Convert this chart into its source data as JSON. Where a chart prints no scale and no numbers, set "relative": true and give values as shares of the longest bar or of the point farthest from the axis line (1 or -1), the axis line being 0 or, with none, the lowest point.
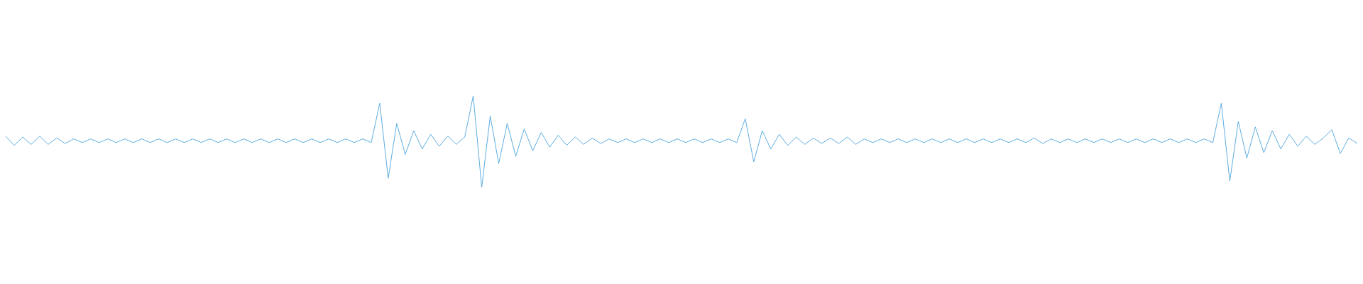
{
  "chart_data": {
    "type": "line",
    "relative": true,
    "marker": "none",
    "categories": [
      null,
      null,
      null,
      null,
      null,
      null,
      null,
      null,
      null,
      null,
      null,
      null,
      null,
      null,
      null,
      null,
      null,
      null,
      null,
      null,
      null,
      null,
      null,
      null,
      null,
      null,
      null,
      null,
      null,
      null,
      null,
      null,
      null,
      null,
      null,
      null,
      null,
      null,
      null,
      null,
      null,
      null,
      null,
      null,
      null,
      null,
      null,
      null,
      null,
      null,
      null,
      null,
      null,
      null,
      null,
      null,
      null,
      null,
      null,
      null,
      null,
      null,
      null,
      null,
      null,
      null,
      null,
      null,
      null,
      null,
      null,
      null,
      null,
      null,
      null,
      null,
      null,
      null,
      null,
      null,
      null,
      null,
      null,
      null,
      null,
      null,
      null,
      null,
      null,
      null,
      null,
      null,
      null,
      null,
      null,
      null,
      null,
      null,
      null,
      null,
      null,
      null,
      null,
      null,
      null,
      null,
      null,
      null,
      null,
      null,
      null,
      null,
      null,
      null,
      null,
      null,
      null,
      null,
      null,
      null,
      null,
      null,
      null,
      null,
      null,
      null,
      null,
      null,
      null,
      null,
      null,
      null,
      null,
      null,
      null,
      null,
      null,
      null,
      null,
      null,
      null,
      null,
      null,
      null,
      null,
      null,
      null,
      null,
      null,
      null,
      null,
      null,
      null,
      null,
      null,
      null,
      null,
      null,
      null,
      null
    ],
    "series": [
      {
        "color": "#5dade2",
        "values": [
          0.56,
          0.46,
          0.55,
          0.47,
          0.56,
          0.47,
          0.54,
          0.48,
          0.53,
          0.49,
          0.53,
          0.49,
          0.53,
          0.49,
          0.53,
          0.49,
          0.53,
          0.49,
          0.53,
          0.49,
          0.53,
          0.49,
          0.53,
          0.49,
          0.53,
          0.49,
          0.53,
          0.49,
          0.53,
          0.49,
          0.53,
          0.49,
          0.53,
          0.49,
          0.53,
          0.49,
          0.53,
          0.49,
          0.53,
          0.49,
          0.53,
          0.49,
          0.53,
          0.49,
          0.92,
          0.1,
          0.7,
          0.36,
          0.62,
          0.42,
          0.58,
          0.45,
          0.56,
          0.47,
          0.55,
          1,
          0,
          0.78,
          0.26,
          0.7,
          0.34,
          0.64,
          0.4,
          0.6,
          0.44,
          0.57,
          0.46,
          0.55,
          0.47,
          0.54,
          0.48,
          0.53,
          0.49,
          0.53,
          0.49,
          0.53,
          0.49,
          0.53,
          0.49,
          0.53,
          0.49,
          0.53,
          0.49,
          0.53,
          0.49,
          0.53,
          0.49,
          0.75,
          0.28,
          0.62,
          0.42,
          0.58,
          0.46,
          0.55,
          0.47,
          0.54,
          0.48,
          0.54,
          0.48,
          0.55,
          0.47,
          0.53,
          0.49,
          0.53,
          0.49,
          0.53,
          0.49,
          0.53,
          0.49,
          0.53,
          0.49,
          0.53,
          0.49,
          0.53,
          0.49,
          0.53,
          0.49,
          0.53,
          0.49,
          0.53,
          0.49,
          0.54,
          0.48,
          0.53,
          0.49,
          0.53,
          0.49,
          0.53,
          0.49,
          0.53,
          0.49,
          0.53,
          0.49,
          0.53,
          0.49,
          0.53,
          0.49,
          0.53,
          0.49,
          0.53,
          0.49,
          0.53,
          0.49,
          0.92,
          0.07,
          0.72,
          0.32,
          0.66,
          0.38,
          0.62,
          0.42,
          0.58,
          0.45,
          0.56,
          0.47,
          0.54,
          0.63,
          0.37,
          0.54,
          0.48
        ]
      }
    ]
  }
}
